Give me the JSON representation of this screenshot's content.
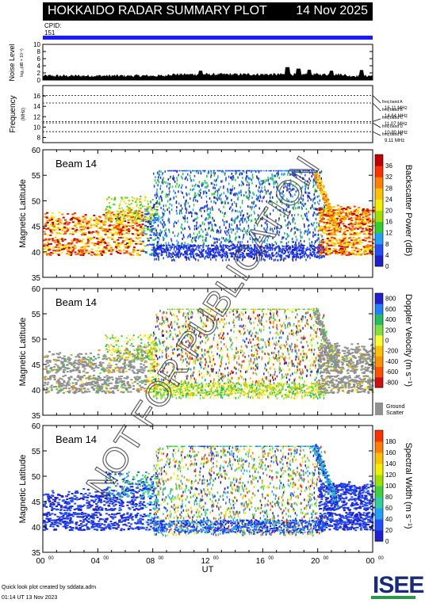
{
  "header": {
    "title": "HOKKAIDO RADAR SUMMARY PLOT",
    "date": "14 Nov 2025",
    "cpid_label": "CPID:",
    "cpid_value": "151"
  },
  "watermark": "NOT FOR PUBLICATION",
  "footer": {
    "credit": "Quick look plot created by sddata.adm",
    "timestamp": "01:14 UT 13 Nov 2023",
    "logo_text": "ISEE"
  },
  "colors": {
    "cpid_bar": "#1a1aff",
    "ground_scatter": "#909090"
  },
  "chart_data": [
    {
      "type": "line",
      "name": "noise",
      "ylabel": "Noise Level",
      "ylabel_sub": "log₁₀(dB × 10⁻³)",
      "ylim": [
        0,
        10
      ],
      "yticks": [
        "0",
        "2",
        "4",
        "6",
        "8",
        "10"
      ],
      "xlim": [
        0,
        24
      ],
      "baseline": 1.2,
      "spikes": [
        {
          "x": 11.5,
          "y": 2.6
        },
        {
          "x": 17.8,
          "y": 3.6
        },
        {
          "x": 18.6,
          "y": 3.2
        },
        {
          "x": 19.4,
          "y": 2.9
        },
        {
          "x": 21.0,
          "y": 2.6
        },
        {
          "x": 23.2,
          "y": 2.8
        }
      ]
    },
    {
      "type": "line",
      "name": "frequency",
      "ylabel": "Frequency",
      "ylabel_sub": "(MHz)",
      "ylim": [
        7,
        18
      ],
      "yticks": [
        "8",
        "10",
        "12",
        "14",
        "16"
      ],
      "bands": [
        {
          "label": "freq band A",
          "value_label": "16.11 MHz",
          "freq": 16.11
        },
        {
          "label": "freq band B",
          "value_label": "14.64 MHz",
          "freq": 14.64
        },
        {
          "label": "freq band C",
          "value_label": "11.07 MHz",
          "freq": 11.07
        },
        {
          "label": "freq band D",
          "value_label": "10.80 MHz",
          "freq": 10.8
        },
        {
          "label": "freq band E",
          "value_label": "9.11 MHz",
          "freq": 9.11
        }
      ]
    },
    {
      "type": "heatmap",
      "name": "power",
      "beam_label": "Beam 14",
      "ylabel": "Magnetic Latitude",
      "ylim": [
        35,
        60
      ],
      "yticks": [
        "35",
        "40",
        "45",
        "50",
        "55",
        "60"
      ],
      "colorbar_label": "Backscatter Power (dB)",
      "colorbar_ticks": [
        "0",
        "4",
        "8",
        "12",
        "16",
        "20",
        "24",
        "28",
        "32",
        "36"
      ],
      "colorbar_range": [
        0,
        36
      ],
      "colors": [
        "#2020c8",
        "#2050ff",
        "#20a0ff",
        "#30d030",
        "#a0e000",
        "#f0f000",
        "#ffc000",
        "#ff8000",
        "#ff3000",
        "#c00000"
      ]
    },
    {
      "type": "heatmap",
      "name": "velocity",
      "beam_label": "Beam 14",
      "ylabel": "Magnetic Latitude",
      "ylim": [
        35,
        60
      ],
      "yticks": [
        "35",
        "40",
        "45",
        "50",
        "55",
        "60"
      ],
      "colorbar_label": "Doppler Velocity (m s⁻¹)",
      "colorbar_ticks": [
        "-800",
        "-600",
        "-400",
        "-200",
        "0",
        "200",
        "400",
        "600",
        "800"
      ],
      "colorbar_range": [
        -800,
        800
      ],
      "colors": [
        "#d01010",
        "#ff5000",
        "#ff9000",
        "#ffc000",
        "#ffff30",
        "#80e040",
        "#20c060",
        "#2080ff",
        "#2020d0"
      ],
      "ground_scatter_label": "Ground\nScatter"
    },
    {
      "type": "heatmap",
      "name": "width",
      "beam_label": "Beam 14",
      "ylabel": "Magnetic Latitude",
      "ylim": [
        35,
        60
      ],
      "yticks": [
        "35",
        "40",
        "45",
        "50",
        "55",
        "60"
      ],
      "colorbar_label": "Spectral Width (m s⁻¹)",
      "colorbar_ticks": [
        "0",
        "20",
        "40",
        "60",
        "80",
        "100",
        "120",
        "140",
        "160",
        "180"
      ],
      "colorbar_range": [
        0,
        180
      ],
      "colors": [
        "#2020d0",
        "#2050ff",
        "#20a0ff",
        "#30d0a0",
        "#40d040",
        "#a0e000",
        "#f0f000",
        "#ffc000",
        "#ff8000",
        "#ff3000"
      ],
      "xlabel": "UT",
      "xlim": [
        0,
        24
      ],
      "xticks": [
        "00",
        "04",
        "08",
        "12",
        "16",
        "20",
        "00"
      ]
    }
  ]
}
